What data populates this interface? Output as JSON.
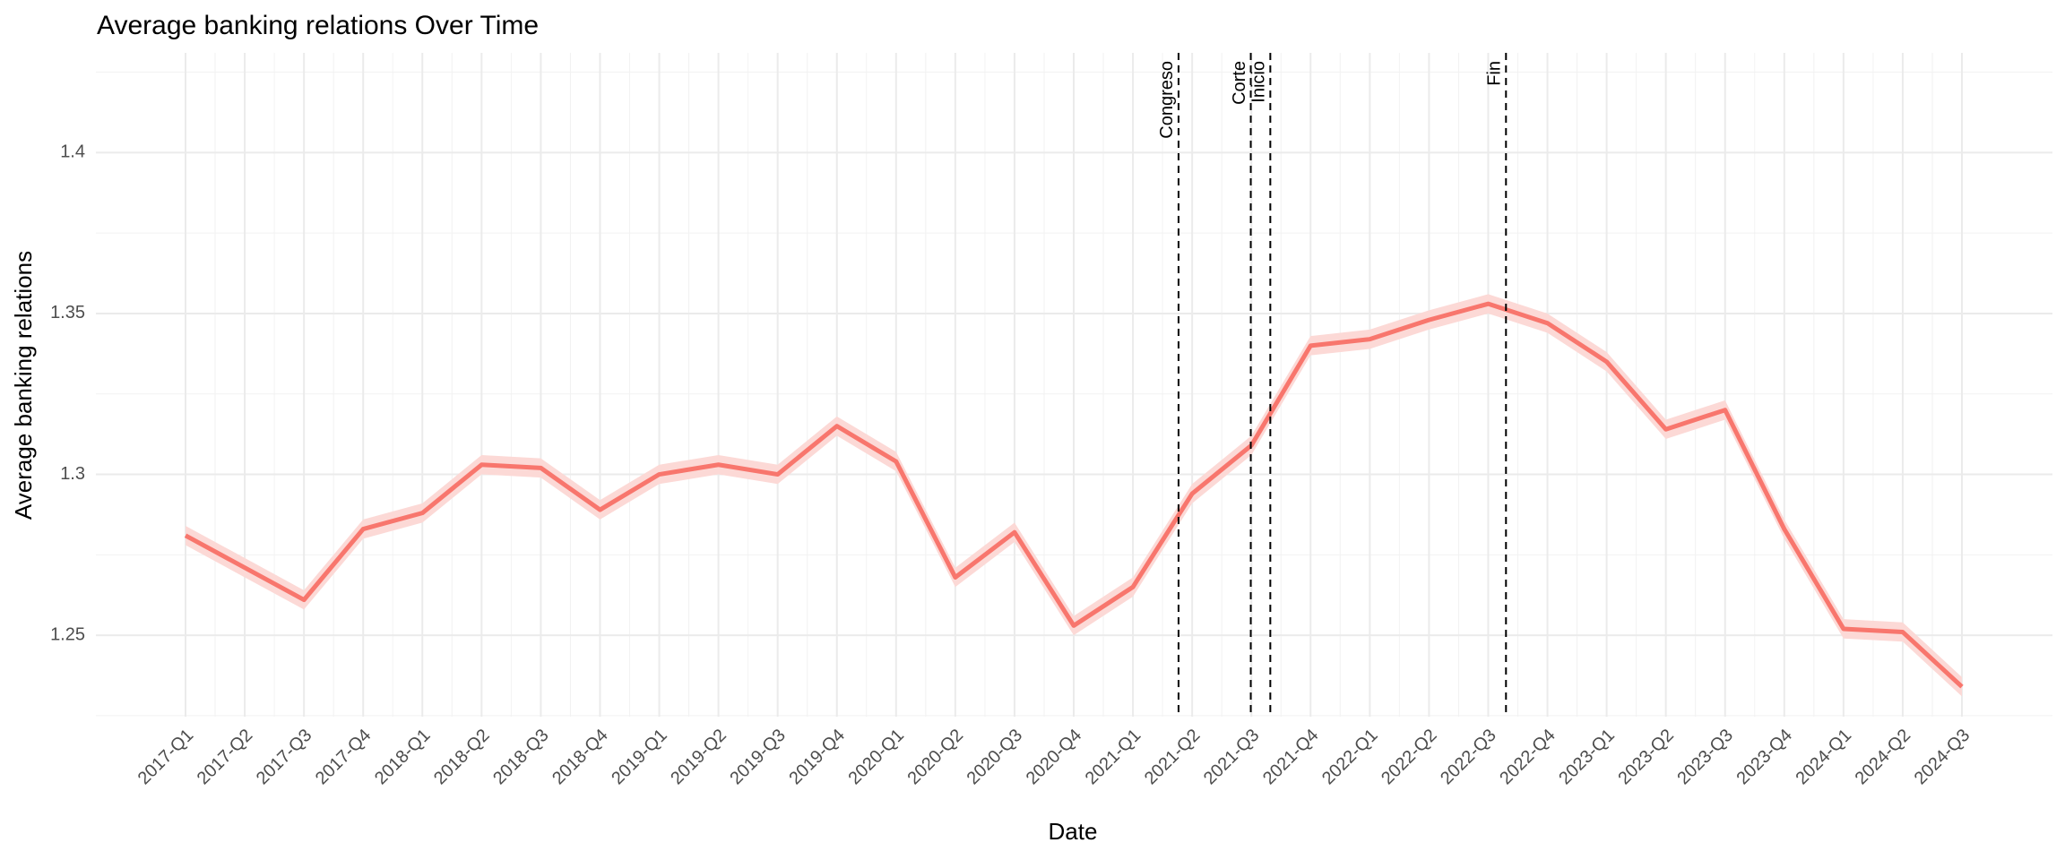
{
  "chart_data": {
    "type": "line",
    "title": "Average banking relations Over Time",
    "x_label": "Date",
    "y_label": "Average banking relations",
    "categories": [
      "2017-Q1",
      "2017-Q2",
      "2017-Q3",
      "2017-Q4",
      "2018-Q1",
      "2018-Q2",
      "2018-Q3",
      "2018-Q4",
      "2019-Q1",
      "2019-Q2",
      "2019-Q3",
      "2019-Q4",
      "2020-Q1",
      "2020-Q2",
      "2020-Q3",
      "2020-Q4",
      "2021-Q1",
      "2021-Q2",
      "2021-Q3",
      "2021-Q4",
      "2022-Q1",
      "2022-Q2",
      "2022-Q3",
      "2022-Q4",
      "2023-Q1",
      "2023-Q2",
      "2023-Q3",
      "2023-Q4",
      "2024-Q1",
      "2024-Q2",
      "2024-Q3"
    ],
    "series": [
      {
        "name": "Average banking relations",
        "color": "#f8766d",
        "values": [
          1.281,
          1.271,
          1.261,
          1.283,
          1.288,
          1.303,
          1.302,
          1.289,
          1.3,
          1.303,
          1.3,
          1.315,
          1.304,
          1.268,
          1.282,
          1.253,
          1.265,
          1.294,
          1.309,
          1.34,
          1.342,
          1.348,
          1.353,
          1.347,
          1.335,
          1.314,
          1.32,
          1.283,
          1.252,
          1.251,
          1.234
        ],
        "lower": [
          1.278,
          1.268,
          1.258,
          1.28,
          1.285,
          1.3,
          1.299,
          1.286,
          1.297,
          1.3,
          1.297,
          1.312,
          1.301,
          1.265,
          1.279,
          1.25,
          1.262,
          1.291,
          1.306,
          1.337,
          1.339,
          1.345,
          1.35,
          1.344,
          1.332,
          1.311,
          1.317,
          1.28,
          1.249,
          1.248,
          1.231
        ],
        "upper": [
          1.284,
          1.274,
          1.264,
          1.286,
          1.291,
          1.306,
          1.305,
          1.292,
          1.303,
          1.306,
          1.303,
          1.318,
          1.307,
          1.271,
          1.285,
          1.256,
          1.268,
          1.297,
          1.312,
          1.343,
          1.345,
          1.351,
          1.356,
          1.35,
          1.338,
          1.317,
          1.323,
          1.286,
          1.255,
          1.254,
          1.237
        ],
        "band_color": "#fcd9d6"
      }
    ],
    "ylim": [
      1.2247,
      1.431
    ],
    "yticks": [
      1.25,
      1.3,
      1.35,
      1.4
    ],
    "yminor": [
      1.225,
      1.275,
      1.325,
      1.375,
      1.425
    ],
    "grid": true,
    "vlines": [
      {
        "label": "Congreso",
        "position": 16.77
      },
      {
        "label": "Corte",
        "position": 17.99
      },
      {
        "label": "Inicio",
        "position": 18.32
      },
      {
        "label": "Fin",
        "position": 22.3
      }
    ]
  }
}
